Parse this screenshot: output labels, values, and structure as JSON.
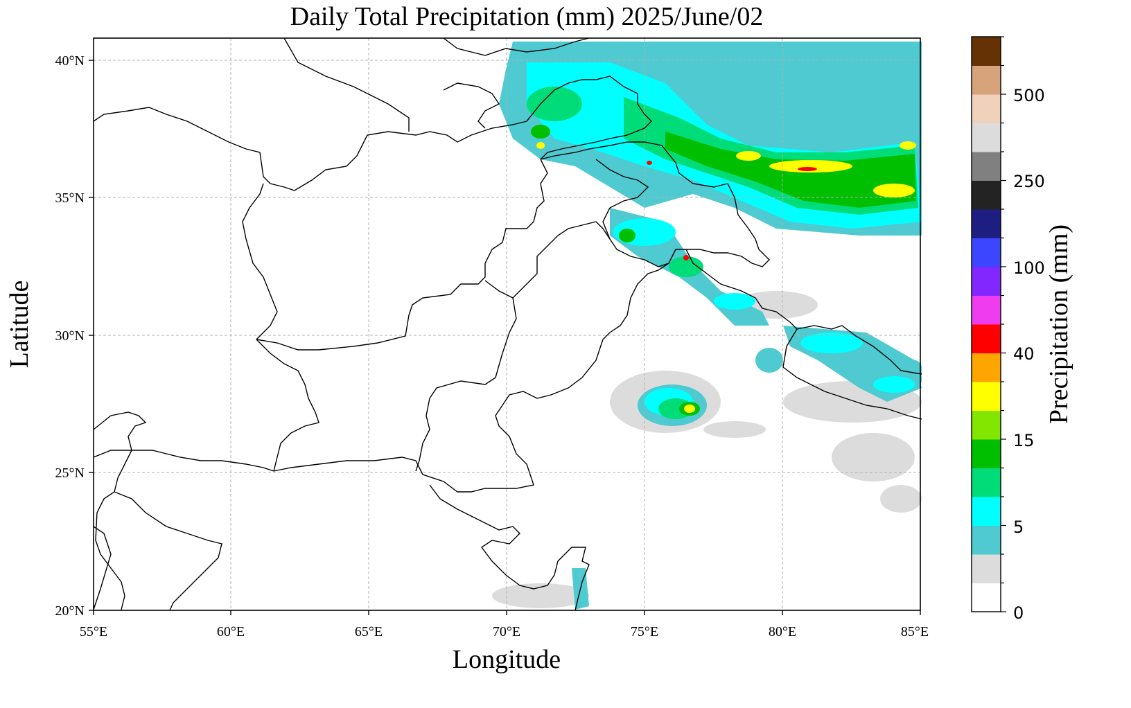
{
  "title": "Daily Total Precipitation (mm)  2025/June/02",
  "axes": {
    "xlabel": "Longitude",
    "ylabel": "Latitude",
    "xticks": [
      "55°E",
      "60°E",
      "65°E",
      "70°E",
      "75°E",
      "80°E",
      "85°E"
    ],
    "yticks": [
      "20°N",
      "25°N",
      "30°N",
      "35°N",
      "40°N"
    ],
    "xlim": [
      55,
      85
    ],
    "ylim": [
      20,
      40.8
    ],
    "grid": "dashed"
  },
  "colorbar": {
    "label": "Precipitation (mm)",
    "tick_labels": [
      "0",
      "5",
      "15",
      "40",
      "100",
      "250",
      "500"
    ],
    "levels": [
      0,
      1,
      2,
      3,
      5,
      10,
      15,
      20,
      30,
      40,
      50,
      75,
      100,
      150,
      200,
      250,
      300,
      400,
      500,
      750,
      1000
    ],
    "colors": [
      "#ffffff",
      "#dcdcdc",
      "#4ecad0",
      "#00ffff",
      "#00dc78",
      "#00be00",
      "#82e600",
      "#ffff00",
      "#ffa500",
      "#ff0000",
      "#ee3cee",
      "#8228ff",
      "#3c46ff",
      "#1e1e82",
      "#232323",
      "#808080",
      "#dcdcdc",
      "#f0d2bc",
      "#d7a37a",
      "#643205"
    ]
  },
  "legend_colors": {
    "light_gray": "#dcdcdc",
    "teal": "#4ecad0",
    "cyan": "#00ffff",
    "green": "#00dc78",
    "dark_green": "#00be00",
    "lime": "#82e600",
    "yellow": "#ffff00",
    "red": "#ff0000"
  }
}
